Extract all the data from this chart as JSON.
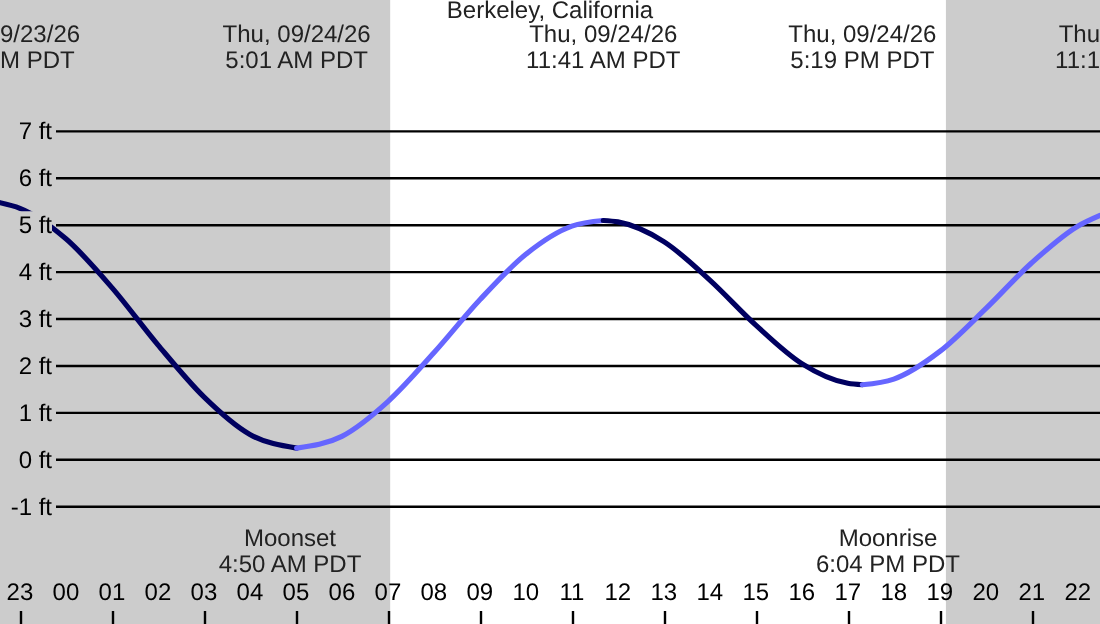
{
  "chart_data": {
    "type": "line",
    "title": "Berkeley, California",
    "xlim": [
      "--09-23T22:34",
      "--09-24T22:29"
    ],
    "ylim": [
      -3.5,
      9.8
    ],
    "xticks": [
      {
        "value": "--09-23T23:00",
        "label": "23"
      },
      {
        "value": "--09-24T00:00",
        "label": "00"
      },
      {
        "value": "--09-24T01:00",
        "label": "01"
      },
      {
        "value": "--09-24T02:00",
        "label": "02"
      },
      {
        "value": "--09-24T03:00",
        "label": "03"
      },
      {
        "value": "--09-24T04:00",
        "label": "04"
      },
      {
        "value": "--09-24T05:00",
        "label": "05"
      },
      {
        "value": "--09-24T06:00",
        "label": "06"
      },
      {
        "value": "--09-24T07:00",
        "label": "07"
      },
      {
        "value": "--09-24T08:00",
        "label": "08"
      },
      {
        "value": "--09-24T09:00",
        "label": "09"
      },
      {
        "value": "--09-24T10:00",
        "label": "10"
      },
      {
        "value": "--09-24T11:00",
        "label": "11"
      },
      {
        "value": "--09-24T12:00",
        "label": "12"
      },
      {
        "value": "--09-24T13:00",
        "label": "13"
      },
      {
        "value": "--09-24T14:00",
        "label": "14"
      },
      {
        "value": "--09-24T15:00",
        "label": "15"
      },
      {
        "value": "--09-24T16:00",
        "label": "16"
      },
      {
        "value": "--09-24T17:00",
        "label": "17"
      },
      {
        "value": "--09-24T18:00",
        "label": "18"
      },
      {
        "value": "--09-24T19:00",
        "label": "19"
      },
      {
        "value": "--09-24T20:00",
        "label": "20"
      },
      {
        "value": "--09-24T21:00",
        "label": "21"
      },
      {
        "value": "--09-24T22:00",
        "label": "22"
      }
    ],
    "yticks": [
      {
        "value": -1,
        "label": "-1 ft"
      },
      {
        "value": 0,
        "label": "0 ft"
      },
      {
        "value": 1,
        "label": "1 ft"
      },
      {
        "value": 2,
        "label": "2 ft"
      },
      {
        "value": 3,
        "label": "3 ft"
      },
      {
        "value": 4,
        "label": "4 ft"
      },
      {
        "value": 5,
        "label": "5 ft"
      },
      {
        "value": 6,
        "label": "6 ft"
      },
      {
        "value": 7,
        "label": "7 ft"
      }
    ],
    "grid": "y",
    "series": [
      {
        "color": "#000060",
        "x": [
          "--09-23T22:34",
          "--09-23T23:00",
          "--09-24T00:00",
          "--09-24T01:00",
          "--09-24T02:00",
          "--09-24T03:00",
          "--09-24T04:00",
          "--09-24T05:01"
        ],
        "values": [
          5.48,
          5.36,
          4.71,
          3.67,
          2.45,
          1.34,
          0.54,
          0.25
        ]
      },
      {
        "color": "#6666ff",
        "x": [
          "--09-24T05:01",
          "--09-24T06:00",
          "--09-24T07:00",
          "--09-24T08:00",
          "--09-24T09:00",
          "--09-24T10:00",
          "--09-24T11:00",
          "--09-24T11:41"
        ],
        "values": [
          0.25,
          0.5,
          1.24,
          2.28,
          3.41,
          4.38,
          4.98,
          5.1
        ]
      },
      {
        "color": "#000060",
        "x": [
          "--09-24T11:41",
          "--09-24T12:00",
          "--09-24T13:00",
          "--09-24T14:00",
          "--09-24T15:00",
          "--09-24T16:00",
          "--09-24T17:00",
          "--09-24T17:19"
        ],
        "values": [
          5.1,
          5.07,
          4.65,
          3.83,
          2.87,
          2.05,
          1.63,
          1.6
        ]
      },
      {
        "color": "#6666ff",
        "x": [
          "--09-24T17:19",
          "--09-24T18:00",
          "--09-24T19:00",
          "--09-24T20:00",
          "--09-24T21:00",
          "--09-24T22:00",
          "--09-24T22:29"
        ],
        "values": [
          1.6,
          1.72,
          2.31,
          3.22,
          4.2,
          4.98,
          5.21
        ]
      }
    ],
    "bands": [
      {
        "axis": "x",
        "from": "--09-23T22:34",
        "to": "--09-24T07:03",
        "color": "#cccccc"
      },
      {
        "axis": "x",
        "from": "--09-24T19:08",
        "to": "--09-24T22:29",
        "color": "#cccccc"
      }
    ],
    "annotations": [
      "9/23/26\nM PDT",
      "Thu, 09/24/26\n5:01 AM PDT",
      "Thu, 09/24/26\n11:41 AM PDT",
      "Thu, 09/24/26\n5:19 PM PDT",
      "Moonset\n4:50 AM PDT",
      "Moonrise\n6:04 PM PDT",
      "Thu\n11:1"
    ]
  }
}
